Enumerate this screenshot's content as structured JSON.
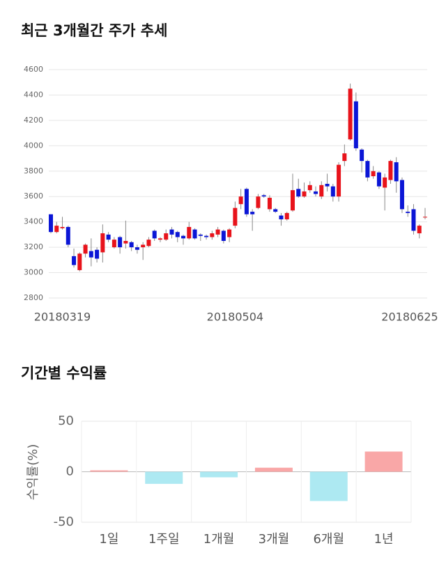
{
  "chart_data": [
    {
      "type": "candlestick",
      "title": "최근 3개월간 주가 추세",
      "categories": [
        null,
        null,
        "20180319",
        null,
        null,
        null,
        null,
        null,
        null,
        null,
        null,
        null,
        null,
        null,
        null,
        null,
        null,
        null,
        null,
        null,
        null,
        null,
        null,
        null,
        null,
        null,
        null,
        null,
        null,
        null,
        null,
        null,
        "20180504",
        null,
        null,
        null,
        null,
        null,
        null,
        null,
        null,
        null,
        null,
        null,
        null,
        null,
        null,
        null,
        null,
        null,
        null,
        null,
        null,
        null,
        null,
        null,
        null,
        null,
        null,
        null,
        null,
        null,
        null,
        "20180625",
        null,
        null
      ],
      "open": [
        3460,
        3320,
        3350,
        3360,
        3130,
        3020,
        3150,
        3170,
        3180,
        3160,
        3300,
        3200,
        3280,
        3230,
        3240,
        3200,
        3200,
        3210,
        3330,
        3260,
        3260,
        3340,
        3320,
        3290,
        3270,
        3340,
        3300,
        3290,
        3280,
        3300,
        3330,
        3280,
        3370,
        3540,
        3660,
        3480,
        3510,
        3610,
        3500,
        3500,
        3450,
        3420,
        3490,
        3660,
        3600,
        3650,
        3640,
        3600,
        3700,
        3680,
        3600,
        3880,
        4050,
        4350,
        3970,
        3880,
        3760,
        3790,
        3670,
        3730,
        3870,
        3730,
        3480,
        3500,
        3310,
        3440
      ],
      "high": [
        3460,
        3400,
        3440,
        3370,
        3190,
        3160,
        3230,
        3270,
        3200,
        3380,
        3320,
        3280,
        3290,
        3410,
        3250,
        3220,
        3240,
        3280,
        3340,
        3280,
        3340,
        3360,
        3330,
        3300,
        3400,
        3350,
        3310,
        3300,
        3330,
        3360,
        3340,
        3350,
        3560,
        3660,
        3670,
        3500,
        3620,
        3620,
        3610,
        3510,
        3470,
        3480,
        3780,
        3740,
        3710,
        3720,
        3680,
        3720,
        3780,
        3700,
        3870,
        4010,
        4490,
        4420,
        3980,
        3890,
        3840,
        3800,
        3780,
        3890,
        3910,
        3750,
        3530,
        3540,
        3380,
        3510
      ],
      "low": [
        3310,
        3310,
        3340,
        3200,
        3040,
        3010,
        3120,
        3050,
        3080,
        3080,
        3240,
        3190,
        3150,
        3190,
        3170,
        3150,
        3100,
        3200,
        3250,
        3240,
        3250,
        3270,
        3240,
        3220,
        3260,
        3260,
        3250,
        3260,
        3260,
        3280,
        3230,
        3240,
        3350,
        3500,
        3440,
        3330,
        3500,
        3590,
        3480,
        3470,
        3370,
        3410,
        3480,
        3590,
        3590,
        3630,
        3600,
        3580,
        3640,
        3560,
        3560,
        3840,
        4040,
        3960,
        3790,
        3720,
        3740,
        3660,
        3490,
        3700,
        3630,
        3470,
        3440,
        3300,
        3270,
        3420
      ],
      "close": [
        3320,
        3370,
        3360,
        3220,
        3060,
        3150,
        3220,
        3120,
        3110,
        3310,
        3260,
        3260,
        3200,
        3250,
        3200,
        3180,
        3220,
        3260,
        3270,
        3270,
        3310,
        3300,
        3280,
        3270,
        3360,
        3270,
        3290,
        3280,
        3310,
        3340,
        3250,
        3340,
        3510,
        3600,
        3460,
        3460,
        3600,
        3600,
        3590,
        3480,
        3420,
        3470,
        3650,
        3600,
        3640,
        3690,
        3620,
        3690,
        3680,
        3600,
        3850,
        3940,
        4450,
        3980,
        3880,
        3750,
        3800,
        3680,
        3750,
        3880,
        3720,
        3500,
        3470,
        3330,
        3370,
        3440
      ],
      "up_color": "#e8131b",
      "down_color": "#0b16d6",
      "ylim": [
        2800,
        4600
      ],
      "yticks": [
        2800,
        3000,
        3200,
        3400,
        3600,
        3800,
        4000,
        4200,
        4400,
        4600
      ],
      "grid": true
    },
    {
      "type": "bar",
      "title": "기간별 수익률",
      "ylabel": "수익률(%)",
      "categories": [
        "1일",
        "1주일",
        "1개월",
        "3개월",
        "6개월",
        "1년"
      ],
      "values": [
        1.4,
        -12,
        -5.5,
        4,
        -29,
        20
      ],
      "positive_color": "#f9a7a7",
      "negative_color": "#ade9f2",
      "ylim": [
        -50,
        50
      ],
      "yticks": [
        -50,
        0,
        50
      ],
      "grid": true
    }
  ]
}
